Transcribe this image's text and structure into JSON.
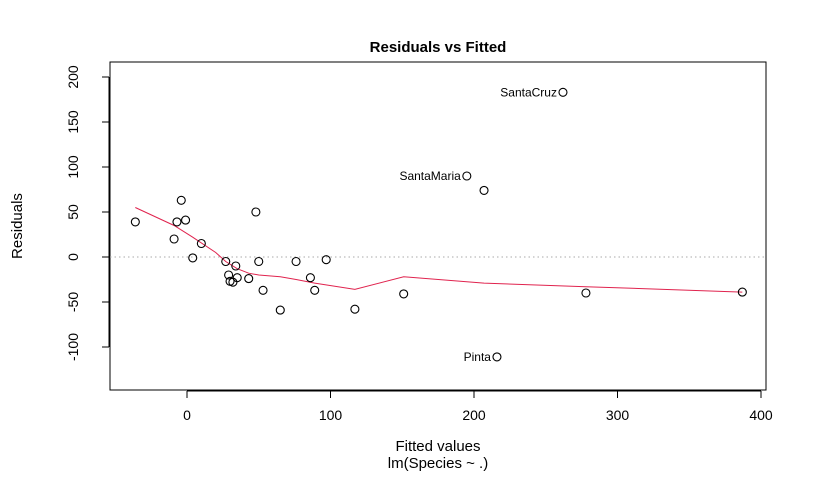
{
  "chart_data": {
    "type": "scatter",
    "title": "Residuals vs Fitted",
    "xlabel": "Fitted values",
    "subtitle": "lm(Species ~ .)",
    "ylabel": "Residuals",
    "xlim": [
      -50,
      400
    ],
    "ylim": [
      -150,
      215
    ],
    "x_ticks": [
      0,
      100,
      200,
      300,
      400
    ],
    "y_ticks": [
      -100,
      -50,
      0,
      50,
      100,
      150,
      200
    ],
    "x_tick_labels": [
      "0",
      "100",
      "200",
      "300",
      "400"
    ],
    "y_tick_labels": [
      "-100",
      "-50",
      "0",
      "50",
      "100",
      "150",
      "200"
    ],
    "grid": false,
    "points": [
      {
        "x": -36,
        "y": 39
      },
      {
        "x": -9,
        "y": 20
      },
      {
        "x": -7,
        "y": 39
      },
      {
        "x": -4,
        "y": 63
      },
      {
        "x": -1,
        "y": 41
      },
      {
        "x": 4,
        "y": -1
      },
      {
        "x": 10,
        "y": 15
      },
      {
        "x": 27,
        "y": -5
      },
      {
        "x": 29,
        "y": -20
      },
      {
        "x": 30,
        "y": -27
      },
      {
        "x": 32,
        "y": -28
      },
      {
        "x": 34,
        "y": -10
      },
      {
        "x": 35,
        "y": -23
      },
      {
        "x": 43,
        "y": -24
      },
      {
        "x": 48,
        "y": 50
      },
      {
        "x": 50,
        "y": -5
      },
      {
        "x": 53,
        "y": -37
      },
      {
        "x": 65,
        "y": -59
      },
      {
        "x": 76,
        "y": -5
      },
      {
        "x": 86,
        "y": -23
      },
      {
        "x": 89,
        "y": -37
      },
      {
        "x": 97,
        "y": -3
      },
      {
        "x": 117,
        "y": -58
      },
      {
        "x": 151,
        "y": -41
      },
      {
        "x": 195,
        "y": 90,
        "label": "SantaMaria"
      },
      {
        "x": 207,
        "y": 74
      },
      {
        "x": 216,
        "y": -111,
        "label": "Pinta"
      },
      {
        "x": 262,
        "y": 183,
        "label": "SantaCruz"
      },
      {
        "x": 278,
        "y": -40
      },
      {
        "x": 387,
        "y": -39
      }
    ],
    "smooth_line": {
      "color": "#e0234e",
      "x": [
        -36,
        -9,
        4,
        20,
        27,
        35,
        43,
        50,
        65,
        76,
        89,
        117,
        151,
        207,
        278,
        387
      ],
      "y": [
        55,
        35,
        22,
        5,
        -5,
        -13,
        -18,
        -20,
        -22,
        -25,
        -29,
        -36,
        -22,
        -29,
        -33,
        -39
      ]
    },
    "zero_line": {
      "y": 0,
      "style": "dotted",
      "color": "#aaaaaa"
    }
  }
}
